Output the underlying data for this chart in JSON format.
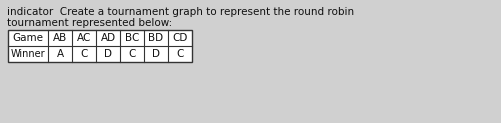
{
  "title_line1": "indicator  Create a tournament graph to represent the round robin",
  "title_line2": "tournament represented below:",
  "col_headers": [
    "Game",
    "AB",
    "AC",
    "AD",
    "BC",
    "BD",
    "CD"
  ],
  "row_winner_label": "Winner",
  "winners": [
    "A",
    "C",
    "D",
    "C",
    "D",
    "C"
  ],
  "bg_color": "#d0d0d0",
  "text_color": "#111111",
  "title_fontsize": 7.5,
  "table_fontsize": 7.5,
  "winner_fontsize": 7.0
}
